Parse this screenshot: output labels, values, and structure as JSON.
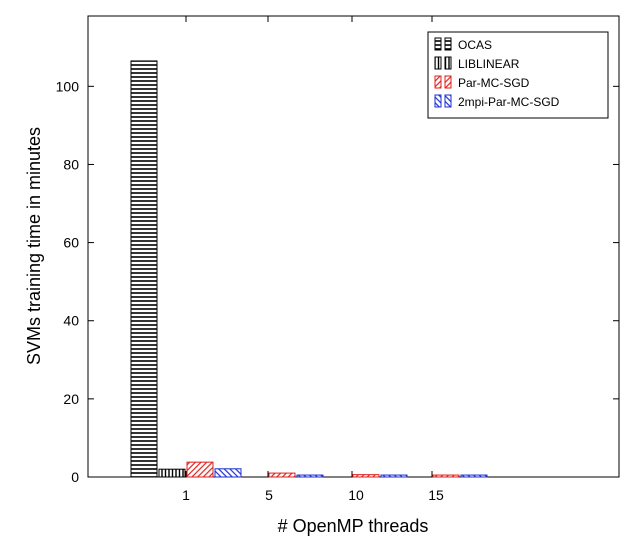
{
  "chart_data": {
    "type": "bar",
    "categories": [
      "1",
      "5",
      "10",
      "15"
    ],
    "series": [
      {
        "name": "OCAS",
        "values": [
          106.5,
          0,
          0,
          0
        ],
        "color": "#000000",
        "pattern": "horizontal-lines"
      },
      {
        "name": "LIBLINEAR",
        "values": [
          2,
          0,
          0,
          0
        ],
        "color": "#000000",
        "pattern": "vertical-lines"
      },
      {
        "name": "Par-MC-SGD",
        "values": [
          3.8,
          1,
          0.6,
          0.5
        ],
        "color": "#e0201b",
        "pattern": "diagonal-up"
      },
      {
        "name": "2mpi-Par-MC-SGD",
        "values": [
          2.1,
          0.5,
          0.5,
          0.5
        ],
        "color": "#1f2fd0",
        "pattern": "diagonal-down"
      }
    ],
    "xlabel": "# OpenMP threads",
    "ylabel": "SVMs training time in minutes",
    "ylim": [
      0,
      118
    ],
    "yticks": [
      0,
      20,
      40,
      60,
      80,
      100
    ],
    "grid": false,
    "legend_position": "top-right"
  }
}
